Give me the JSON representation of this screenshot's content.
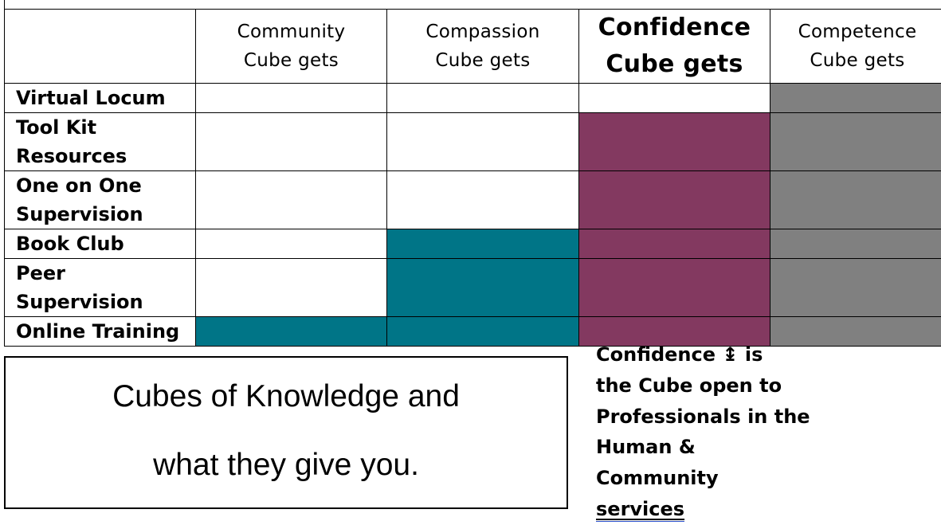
{
  "table": {
    "columns": [
      {
        "line1": "Community",
        "line2": "Cube gets",
        "bold": false
      },
      {
        "line1": "Compassion",
        "line2": "Cube gets",
        "bold": false
      },
      {
        "line1": "Confidence",
        "line2": "Cube gets",
        "bold": true
      },
      {
        "line1": "Competence",
        "line2": "Cube gets",
        "bold": false
      }
    ],
    "rows": [
      {
        "label_line1": "Virtual Locum",
        "label_line2": "",
        "fills": [
          "",
          "",
          "",
          "gray"
        ]
      },
      {
        "label_line1": "Tool Kit",
        "label_line2": "Resources",
        "fills": [
          "",
          "",
          "plum",
          "gray"
        ]
      },
      {
        "label_line1": "One on One",
        "label_line2": "Supervision",
        "fills": [
          "",
          "",
          "plum",
          "gray"
        ]
      },
      {
        "label_line1": "Book Club",
        "label_line2": "",
        "fills": [
          "",
          "teal",
          "plum",
          "gray"
        ]
      },
      {
        "label_line1": "Peer Supervision",
        "label_line2": "",
        "fills": [
          "",
          "teal",
          "plum",
          "gray"
        ]
      },
      {
        "label_line1": "Online Training",
        "label_line2": "",
        "fills": [
          "teal",
          "teal",
          "plum",
          "gray"
        ]
      }
    ]
  },
  "colors": {
    "teal": "#007587",
    "plum": "#833960",
    "gray": "#808080"
  },
  "title_box": {
    "line1": "Cubes of Knowledge and",
    "line2": "what they give you."
  },
  "side_note": {
    "line1": "Confidence ↨ is",
    "line2": "the Cube open to",
    "line3": "Professionals in the",
    "line4": "Human &",
    "line5": "Community",
    "line6": "services"
  }
}
